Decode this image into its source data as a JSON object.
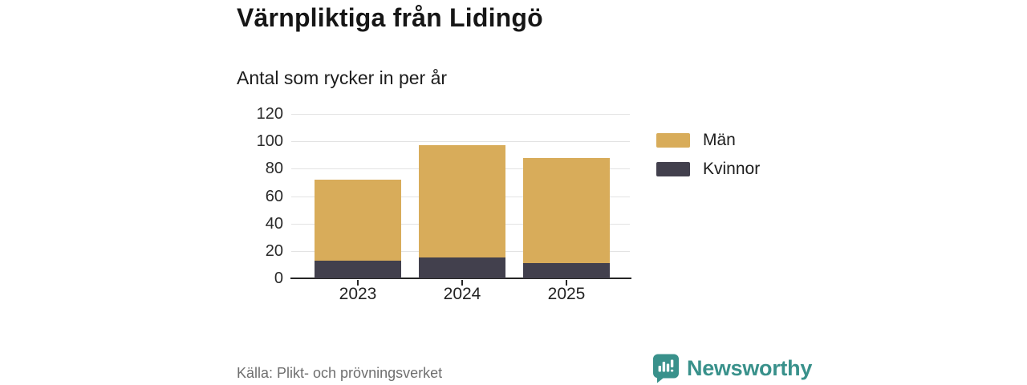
{
  "title": "Värnpliktiga från Lidingö",
  "subtitle": "Antal som rycker in per år",
  "source": "Källa: Plikt- och prövningsverket",
  "branding": {
    "name": "Newsworthy",
    "color": "#39918b"
  },
  "colors": {
    "men": "#d8ac5a",
    "women": "#42404d",
    "gridline": "#e3e3e3",
    "axis": "#262626",
    "title_text": "#161616",
    "muted_text": "#6f6f6f"
  },
  "legend": [
    {
      "label": "Män",
      "color": "#d8ac5a"
    },
    {
      "label": "Kvinnor",
      "color": "#42404d"
    }
  ],
  "chart_data": {
    "type": "bar",
    "stacked": true,
    "stack_bottom": "Kvinnor",
    "title": "Värnpliktiga från Lidingö",
    "subtitle": "Antal som rycker in per år",
    "categories": [
      "2023",
      "2024",
      "2025"
    ],
    "series": [
      {
        "name": "Män",
        "color": "#d8ac5a",
        "values": [
          59,
          82,
          77
        ]
      },
      {
        "name": "Kvinnor",
        "color": "#42404d",
        "values": [
          13,
          15,
          11
        ]
      }
    ],
    "totals": [
      72,
      97,
      88
    ],
    "xlabel": "",
    "ylabel": "",
    "ylim": [
      0,
      120
    ],
    "yticks": [
      0,
      20,
      40,
      60,
      80,
      100,
      120
    ],
    "grid": true,
    "legend_position": "right"
  }
}
